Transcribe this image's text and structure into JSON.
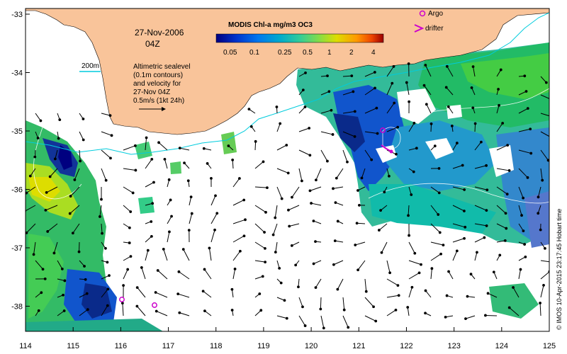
{
  "header": {
    "date": "27-Nov-2006",
    "time": "04Z"
  },
  "colorbar": {
    "title": "MODIS Chl-a mg/m3 OC3",
    "ticks": [
      "0.05",
      "0.1",
      "0.25",
      "0.5",
      "1",
      "2",
      "4"
    ],
    "colors": [
      "#000080",
      "#0033cc",
      "#0077ee",
      "#00aacc",
      "#33cc99",
      "#88dd44",
      "#dddd00",
      "#ff9900",
      "#ee4400",
      "#990000"
    ]
  },
  "legend": {
    "argo": "Argo",
    "drifter": "drifter",
    "argo_color": "#cc00cc",
    "drifter_color": "#cc00cc"
  },
  "isobath_label": "200m",
  "altimetry_note": {
    "line1": "Altimetric sealevel",
    "line2": "(0.1m contours)",
    "line3": "and velocity for",
    "line4": "27-Nov 04Z",
    "line5": "0.5m/s (1kt 24h)"
  },
  "x_ticks": [
    "114",
    "115",
    "116",
    "117",
    "118",
    "119",
    "120",
    "121",
    "122",
    "123",
    "124",
    "125"
  ],
  "y_ticks": [
    "-33",
    "-34",
    "-35",
    "-36",
    "-37",
    "-38"
  ],
  "credit": "© IMOS 10-Apr-2015 23:17:45 Hobart time",
  "colors": {
    "land": "#f9c49a",
    "isobath": "#00ccdd"
  }
}
